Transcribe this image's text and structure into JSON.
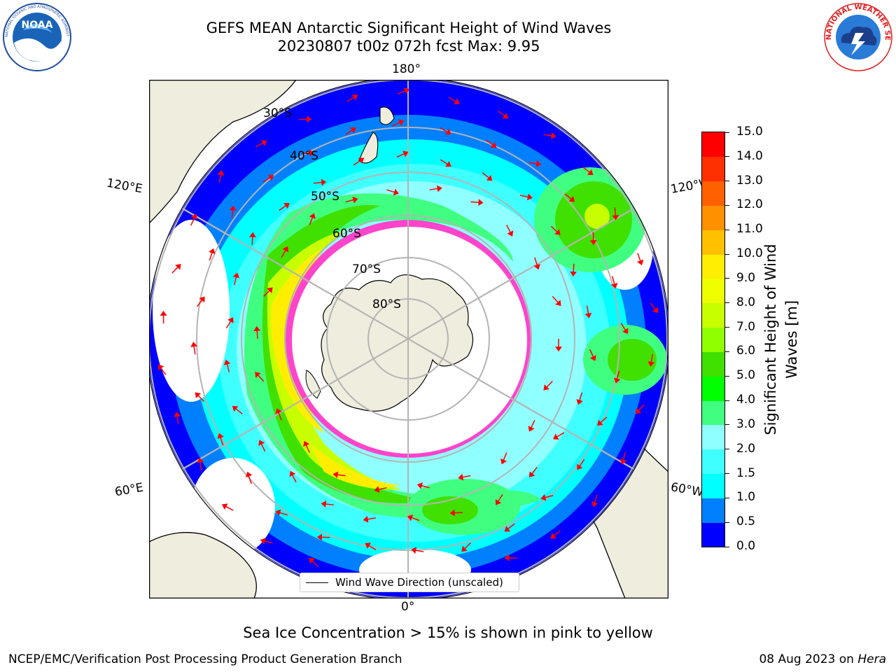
{
  "title": {
    "line1": "GEFS MEAN Antarctic Significant Height of Wind Waves",
    "line2": "20230807 t00z 072h fcst   Max: 9.95"
  },
  "logos": {
    "noaa": {
      "text": "NOAA",
      "ring_text": "NATIONAL OCEANIC AND ATMOSPHERIC ADMINISTRATION · U.S. DEPARTMENT OF COMMERCE"
    },
    "nws": {
      "ring_text": "NATIONAL WEATHER SERVICE"
    }
  },
  "map": {
    "projection": "south-polar-stereographic",
    "longitude_labels": {
      "top": "180°",
      "bottom": "0°",
      "upper_left": "120°E",
      "upper_right": "120°W",
      "lower_left": "60°E",
      "lower_right": "60°W"
    },
    "latitude_labels": [
      "30°S",
      "40°S",
      "50°S",
      "60°S",
      "70°S",
      "80°S"
    ],
    "legend": "Wind Wave Direction (unscaled)",
    "colors": {
      "land": "#efedde",
      "ocean_none": "#ffffff",
      "ice_edge": "#ff44cc",
      "arrow": "#ff0000",
      "graticule": "#b4b4b4"
    }
  },
  "colorbar": {
    "label_line1": "Significant Height of Wind",
    "label_line2": "Waves [m]",
    "ticks": [
      "0.0",
      "0.5",
      "1.0",
      "1.5",
      "2.0",
      "3.0",
      "4.0",
      "5.0",
      "6.0",
      "7.0",
      "8.0",
      "9.0",
      "10.0",
      "11.0",
      "12.0",
      "13.0",
      "14.0",
      "15.0"
    ],
    "colors": [
      "#0000ff",
      "#0080ff",
      "#00ffff",
      "#40ffff",
      "#90ffff",
      "#40ff80",
      "#00ff00",
      "#40e000",
      "#90ff00",
      "#c8ff00",
      "#f0ff00",
      "#ffee00",
      "#ffc000",
      "#ff9000",
      "#ff6000",
      "#ff3000",
      "#ff0000"
    ]
  },
  "footer": {
    "sea_ice_note": "Sea Ice Concentration > 15% is shown in pink to yellow",
    "producer": "NCEP/EMC/Verification Post Processing Product Generation Branch",
    "date": "08 Aug 2023 on",
    "machine": "Hera"
  }
}
